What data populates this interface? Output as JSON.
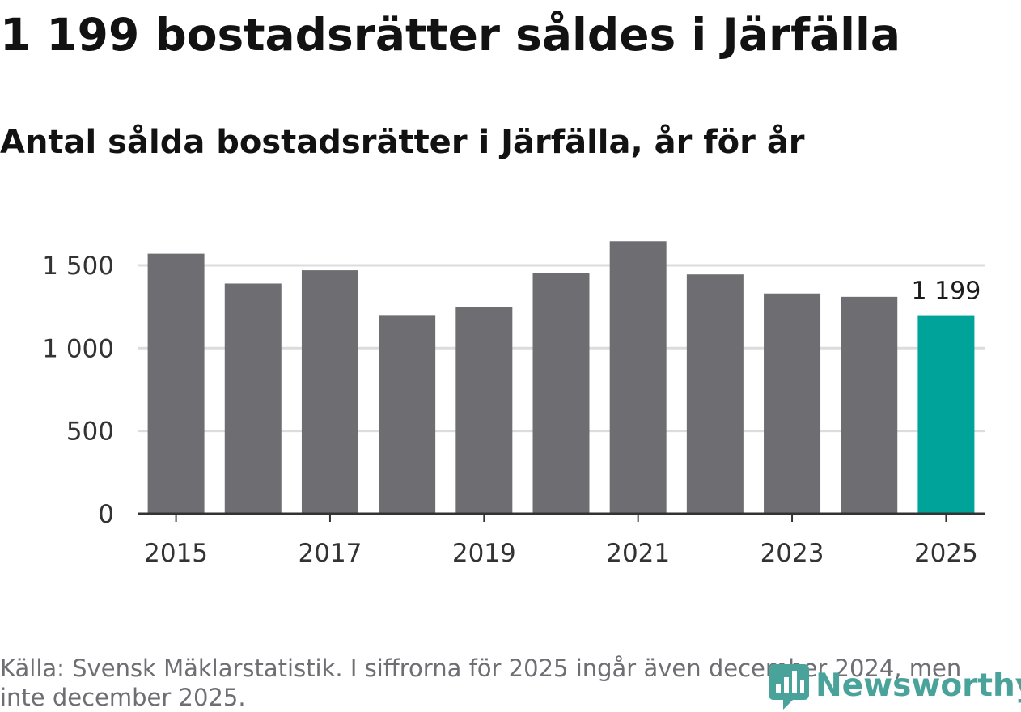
{
  "title": "1 199 bostadsrätter såldes i Järfälla",
  "subtitle": "Antal sålda bostadsrätter i Järfälla, år för år",
  "source": "Källa: Svensk Mäklarstatistik. I siffrorna för 2025 ingår även december 2024, men inte december 2025.",
  "logo": {
    "text": "Newsworthy",
    "icon": "newsworthy-logo-icon"
  },
  "colors": {
    "bar": "#6e6d72",
    "highlight": "#00a39a",
    "grid": "#dcdcdc",
    "axis": "#333333",
    "text": "#1b1b1b"
  },
  "chart_data": {
    "type": "bar",
    "title": "Antal sålda bostadsrätter i Järfälla, år för år",
    "xlabel": "",
    "ylabel": "",
    "categories": [
      "2015",
      "2016",
      "2017",
      "2018",
      "2019",
      "2020",
      "2021",
      "2022",
      "2023",
      "2024",
      "2025"
    ],
    "values": [
      1570,
      1390,
      1470,
      1200,
      1250,
      1455,
      1645,
      1445,
      1330,
      1310,
      1199
    ],
    "x_tick_labels": [
      "2015",
      "2017",
      "2019",
      "2021",
      "2023",
      "2025"
    ],
    "y_ticks": [
      0,
      500,
      1000,
      1500
    ],
    "y_tick_labels": [
      "0",
      "500",
      "1 000",
      "1 500"
    ],
    "ylim": [
      0,
      1700
    ],
    "highlight_category": "2025",
    "data_label": {
      "category": "2025",
      "text": "1 199"
    },
    "grid": true,
    "legend": "none"
  }
}
